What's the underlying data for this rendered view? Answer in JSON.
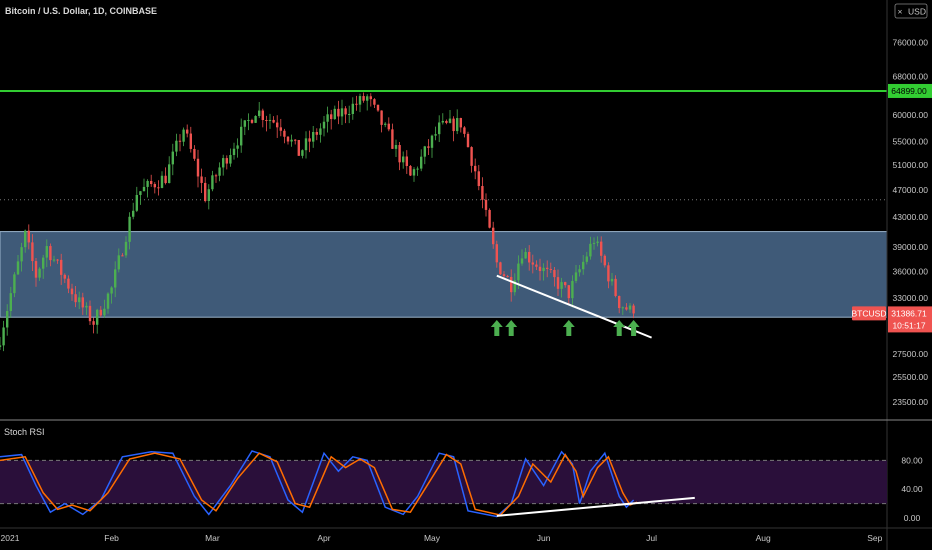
{
  "header": {
    "symbol_title": "Bitcoin / U.S. Dollar, 1D, COINBASE",
    "currency_badge": "USD",
    "badge_icon": "cross-icon"
  },
  "price_axis": {
    "ticks": [
      "76000.00",
      "68000.00",
      "60000.00",
      "55000.00",
      "51000.00",
      "47000.00",
      "43000.00",
      "39000.00",
      "36000.00",
      "33000.00",
      "27500.00",
      "25500.00",
      "23500.00"
    ],
    "scale": "log"
  },
  "time_axis": {
    "labels": [
      "2021",
      "Feb",
      "Mar",
      "Apr",
      "May",
      "Jun",
      "Jul",
      "Aug",
      "Sep"
    ]
  },
  "price_labels": {
    "resistance": "64899.00",
    "ticker": "BTCUSD",
    "last_price": "31386.71",
    "countdown": "10:51:17"
  },
  "stoch": {
    "title": "Stoch RSI",
    "ticks": [
      "80.00",
      "40.00",
      "0.00"
    ],
    "upper_band": 80,
    "lower_band": 20
  },
  "colors": {
    "up": "#4caf50",
    "down": "#ef5350",
    "zone_fill": "#3f5a78",
    "zone_border": "#9bb4cc",
    "resistance_line": "#32cd32",
    "trend_line": "#ffffff",
    "arrow": "#4caf50",
    "stoch_k": "#2962ff",
    "stoch_d": "#ff6d00",
    "stoch_band_fill": "#2a0f3a"
  },
  "chart_data": [
    {
      "type": "candlestick",
      "title": "Bitcoin / U.S. Dollar, 1D, COINBASE",
      "y_scale": "log",
      "x_range": [
        "2021-01-01",
        "2021-09-30"
      ],
      "y_range": [
        22000,
        85000
      ],
      "horizontal_lines": [
        {
          "value": 64899,
          "label": "64899.00"
        },
        {
          "value": 45500,
          "style": "dotted"
        }
      ],
      "support_zone": {
        "low": 31000,
        "high": 41000
      },
      "trend_line": {
        "from": {
          "date": "2021-05-19",
          "value": 35500
        },
        "to": {
          "date": "2021-07-01",
          "value": 29000
        }
      },
      "arrow_dates": [
        "2021-05-19",
        "2021-05-23",
        "2021-06-08",
        "2021-06-22",
        "2021-06-26"
      ],
      "close_path": [
        {
          "date": "2021-01-01",
          "value": 29000
        },
        {
          "date": "2021-01-08",
          "value": 40500
        },
        {
          "date": "2021-01-11",
          "value": 35500
        },
        {
          "date": "2021-01-14",
          "value": 39000
        },
        {
          "date": "2021-01-22",
          "value": 33000
        },
        {
          "date": "2021-01-27",
          "value": 30500
        },
        {
          "date": "2021-02-01",
          "value": 34000
        },
        {
          "date": "2021-02-08",
          "value": 46500
        },
        {
          "date": "2021-02-16",
          "value": 49000
        },
        {
          "date": "2021-02-21",
          "value": 57500
        },
        {
          "date": "2021-02-27",
          "value": 46000
        },
        {
          "date": "2021-03-03",
          "value": 50500
        },
        {
          "date": "2021-03-13",
          "value": 61000
        },
        {
          "date": "2021-03-20",
          "value": 58000
        },
        {
          "date": "2021-03-25",
          "value": 53000
        },
        {
          "date": "2021-04-02",
          "value": 59000
        },
        {
          "date": "2021-04-13",
          "value": 63500
        },
        {
          "date": "2021-04-19",
          "value": 56000
        },
        {
          "date": "2021-04-25",
          "value": 49000
        },
        {
          "date": "2021-05-03",
          "value": 57500
        },
        {
          "date": "2021-05-09",
          "value": 58500
        },
        {
          "date": "2021-05-13",
          "value": 50000
        },
        {
          "date": "2021-05-19",
          "value": 37000
        },
        {
          "date": "2021-05-23",
          "value": 34500
        },
        {
          "date": "2021-05-26",
          "value": 38500
        },
        {
          "date": "2021-06-08",
          "value": 33500
        },
        {
          "date": "2021-06-15",
          "value": 40000
        },
        {
          "date": "2021-06-22",
          "value": 32500
        },
        {
          "date": "2021-06-26",
          "value": 31386.71
        }
      ]
    },
    {
      "type": "line",
      "title": "Stoch RSI",
      "ylim": [
        0,
        100
      ],
      "band_lines": [
        80,
        20
      ],
      "trend_line": {
        "from": {
          "date": "2021-05-19",
          "value": 3
        },
        "to": {
          "date": "2021-07-13",
          "value": 28
        }
      },
      "series": [
        {
          "points": [
            {
              "date": "2021-01-01",
              "value": 85
            },
            {
              "date": "2021-01-07",
              "value": 88
            },
            {
              "date": "2021-01-11",
              "value": 45
            },
            {
              "date": "2021-01-15",
              "value": 8
            },
            {
              "date": "2021-01-19",
              "value": 20
            },
            {
              "date": "2021-01-24",
              "value": 5
            },
            {
              "date": "2021-01-29",
              "value": 25
            },
            {
              "date": "2021-02-04",
              "value": 85
            },
            {
              "date": "2021-02-12",
              "value": 92
            },
            {
              "date": "2021-02-18",
              "value": 90
            },
            {
              "date": "2021-02-24",
              "value": 30
            },
            {
              "date": "2021-02-28",
              "value": 5
            },
            {
              "date": "2021-03-06",
              "value": 45
            },
            {
              "date": "2021-03-12",
              "value": 93
            },
            {
              "date": "2021-03-17",
              "value": 85
            },
            {
              "date": "2021-03-22",
              "value": 25
            },
            {
              "date": "2021-03-26",
              "value": 8
            },
            {
              "date": "2021-04-01",
              "value": 90
            },
            {
              "date": "2021-04-05",
              "value": 65
            },
            {
              "date": "2021-04-09",
              "value": 85
            },
            {
              "date": "2021-04-13",
              "value": 80
            },
            {
              "date": "2021-04-18",
              "value": 15
            },
            {
              "date": "2021-04-23",
              "value": 5
            },
            {
              "date": "2021-04-27",
              "value": 30
            },
            {
              "date": "2021-05-03",
              "value": 90
            },
            {
              "date": "2021-05-07",
              "value": 85
            },
            {
              "date": "2021-05-11",
              "value": 10
            },
            {
              "date": "2021-05-19",
              "value": 2
            },
            {
              "date": "2021-05-23",
              "value": 20
            },
            {
              "date": "2021-05-27",
              "value": 82
            },
            {
              "date": "2021-06-01",
              "value": 45
            },
            {
              "date": "2021-06-06",
              "value": 92
            },
            {
              "date": "2021-06-09",
              "value": 75
            },
            {
              "date": "2021-06-11",
              "value": 20
            },
            {
              "date": "2021-06-14",
              "value": 65
            },
            {
              "date": "2021-06-18",
              "value": 90
            },
            {
              "date": "2021-06-22",
              "value": 30
            },
            {
              "date": "2021-06-24",
              "value": 15
            },
            {
              "date": "2021-06-26",
              "value": 25
            }
          ]
        },
        {
          "points": [
            {
              "date": "2021-01-01",
              "value": 80
            },
            {
              "date": "2021-01-08",
              "value": 85
            },
            {
              "date": "2021-01-13",
              "value": 35
            },
            {
              "date": "2021-01-17",
              "value": 12
            },
            {
              "date": "2021-01-21",
              "value": 18
            },
            {
              "date": "2021-01-26",
              "value": 10
            },
            {
              "date": "2021-01-31",
              "value": 35
            },
            {
              "date": "2021-02-06",
              "value": 82
            },
            {
              "date": "2021-02-13",
              "value": 90
            },
            {
              "date": "2021-02-20",
              "value": 82
            },
            {
              "date": "2021-02-26",
              "value": 25
            },
            {
              "date": "2021-03-02",
              "value": 10
            },
            {
              "date": "2021-03-08",
              "value": 55
            },
            {
              "date": "2021-03-14",
              "value": 90
            },
            {
              "date": "2021-03-19",
              "value": 78
            },
            {
              "date": "2021-03-24",
              "value": 20
            },
            {
              "date": "2021-03-28",
              "value": 15
            },
            {
              "date": "2021-04-03",
              "value": 85
            },
            {
              "date": "2021-04-07",
              "value": 70
            },
            {
              "date": "2021-04-11",
              "value": 82
            },
            {
              "date": "2021-04-15",
              "value": 70
            },
            {
              "date": "2021-04-20",
              "value": 12
            },
            {
              "date": "2021-04-25",
              "value": 8
            },
            {
              "date": "2021-04-29",
              "value": 40
            },
            {
              "date": "2021-05-05",
              "value": 88
            },
            {
              "date": "2021-05-09",
              "value": 75
            },
            {
              "date": "2021-05-13",
              "value": 12
            },
            {
              "date": "2021-05-20",
              "value": 4
            },
            {
              "date": "2021-05-25",
              "value": 30
            },
            {
              "date": "2021-05-29",
              "value": 75
            },
            {
              "date": "2021-06-03",
              "value": 50
            },
            {
              "date": "2021-06-07",
              "value": 88
            },
            {
              "date": "2021-06-10",
              "value": 65
            },
            {
              "date": "2021-06-12",
              "value": 30
            },
            {
              "date": "2021-06-16",
              "value": 70
            },
            {
              "date": "2021-06-19",
              "value": 85
            },
            {
              "date": "2021-06-23",
              "value": 35
            },
            {
              "date": "2021-06-25",
              "value": 18
            },
            {
              "date": "2021-06-27",
              "value": 22
            }
          ]
        }
      ]
    }
  ]
}
